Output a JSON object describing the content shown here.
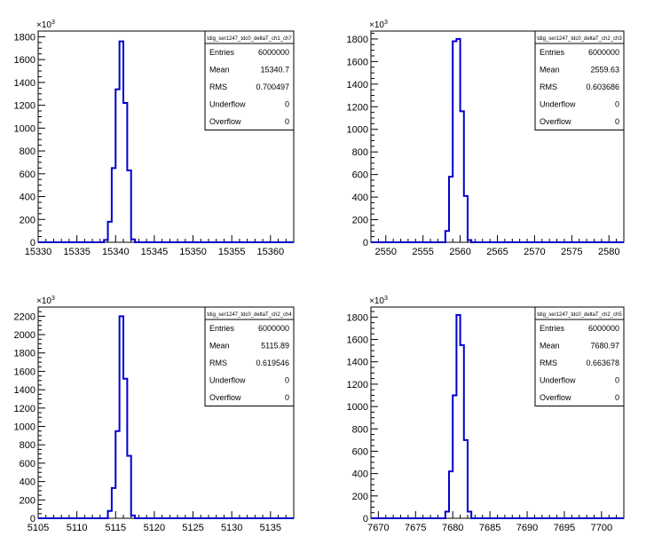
{
  "stats_labels": [
    "Entries",
    "Mean",
    "RMS",
    "Underflow",
    "Overflow"
  ],
  "multiplier": {
    "base": "×10",
    "exp": "3"
  },
  "colors": {
    "line": "#0000cc",
    "frame": "#000000",
    "background": "#ffffff"
  },
  "chart_data": [
    {
      "type": "histogram",
      "title": "",
      "stats_name": "tdig_ser1247_tdc0_deltaT_ch1_ch7",
      "stats": {
        "Entries": "6000000",
        "Mean": "15340.7",
        "RMS": "0.700497",
        "Underflow": "0",
        "Overflow": "0"
      },
      "xlim": [
        15330,
        15363
      ],
      "ylim": [
        0,
        1850
      ],
      "x_ticks": [
        15330,
        15335,
        15340,
        15345,
        15350,
        15355,
        15360
      ],
      "y_ticks": [
        0,
        200,
        400,
        600,
        800,
        1000,
        1200,
        1400,
        1600,
        1800
      ],
      "y_unit_exponent": 3,
      "bin_width": 0.5,
      "bins": [
        {
          "x": 15338.5,
          "y": 20
        },
        {
          "x": 15339.0,
          "y": 180
        },
        {
          "x": 15339.5,
          "y": 650
        },
        {
          "x": 15340.0,
          "y": 1340
        },
        {
          "x": 15340.5,
          "y": 1760
        },
        {
          "x": 15341.0,
          "y": 1220
        },
        {
          "x": 15341.5,
          "y": 630
        },
        {
          "x": 15342.0,
          "y": 25
        }
      ]
    },
    {
      "type": "histogram",
      "title": "",
      "stats_name": "tdig_ser1247_tdc0_deltaT_ch2_ch3",
      "stats": {
        "Entries": "6000000",
        "Mean": "2559.63",
        "RMS": "0.603686",
        "Underflow": "0",
        "Overflow": "0"
      },
      "xlim": [
        2548,
        2582
      ],
      "ylim": [
        0,
        1870
      ],
      "x_ticks": [
        2550,
        2555,
        2560,
        2565,
        2570,
        2575,
        2580
      ],
      "y_ticks": [
        0,
        200,
        400,
        600,
        800,
        1000,
        1200,
        1400,
        1600,
        1800
      ],
      "y_unit_exponent": 3,
      "bin_width": 0.5,
      "bins": [
        {
          "x": 2558.0,
          "y": 100
        },
        {
          "x": 2558.5,
          "y": 580
        },
        {
          "x": 2559.0,
          "y": 1780
        },
        {
          "x": 2559.5,
          "y": 1800
        },
        {
          "x": 2560.0,
          "y": 1160
        },
        {
          "x": 2560.5,
          "y": 410
        },
        {
          "x": 2561.0,
          "y": 20
        }
      ]
    },
    {
      "type": "histogram",
      "title": "",
      "stats_name": "tdig_ser1247_tdc0_deltaT_ch2_ch4",
      "stats": {
        "Entries": "6000000",
        "Mean": "5115.89",
        "RMS": "0.619546",
        "Underflow": "0",
        "Overflow": "0"
      },
      "xlim": [
        5105,
        5138
      ],
      "ylim": [
        0,
        2300
      ],
      "x_ticks": [
        5105,
        5110,
        5115,
        5120,
        5125,
        5130,
        5135
      ],
      "y_ticks": [
        0,
        200,
        400,
        600,
        800,
        1000,
        1200,
        1400,
        1600,
        1800,
        2000,
        2200
      ],
      "y_unit_exponent": 3,
      "bin_width": 0.5,
      "bins": [
        {
          "x": 5114.0,
          "y": 80
        },
        {
          "x": 5114.5,
          "y": 330
        },
        {
          "x": 5115.0,
          "y": 950
        },
        {
          "x": 5115.5,
          "y": 2200
        },
        {
          "x": 5116.0,
          "y": 1520
        },
        {
          "x": 5116.5,
          "y": 680
        },
        {
          "x": 5117.0,
          "y": 30
        }
      ]
    },
    {
      "type": "histogram",
      "title": "",
      "stats_name": "tdig_ser1247_tdc0_deltaT_ch2_ch5",
      "stats": {
        "Entries": "6000000",
        "Mean": "7680.97",
        "RMS": "0.663678",
        "Underflow": "0",
        "Overflow": "0"
      },
      "xlim": [
        7669,
        7703
      ],
      "ylim": [
        0,
        1890
      ],
      "x_ticks": [
        7670,
        7675,
        7680,
        7685,
        7690,
        7695,
        7700
      ],
      "y_ticks": [
        0,
        200,
        400,
        600,
        800,
        1000,
        1200,
        1400,
        1600,
        1800
      ],
      "y_unit_exponent": 3,
      "bin_width": 0.5,
      "bins": [
        {
          "x": 7679.0,
          "y": 60
        },
        {
          "x": 7679.5,
          "y": 420
        },
        {
          "x": 7680.0,
          "y": 1100
        },
        {
          "x": 7680.5,
          "y": 1820
        },
        {
          "x": 7681.0,
          "y": 1550
        },
        {
          "x": 7681.5,
          "y": 700
        },
        {
          "x": 7682.0,
          "y": 60
        }
      ]
    }
  ]
}
